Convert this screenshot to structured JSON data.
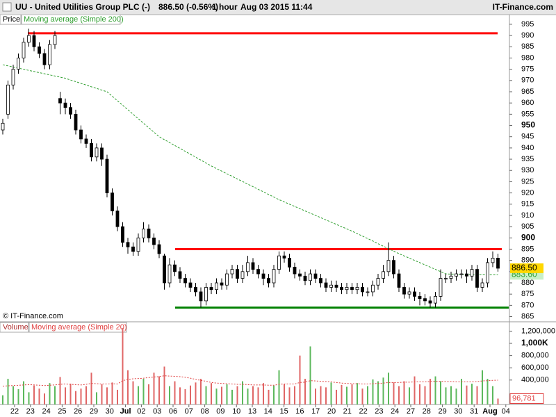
{
  "header": {
    "symbol": "UU - United Utilities Group PLC (-)",
    "quote": "886.50 (-0.56%)",
    "interval": "1 hour",
    "timestamp": "Aug 03 2015 11:44",
    "brand": "IT-Finance.com"
  },
  "chart_data": [
    {
      "type": "candlestick",
      "candle_name": "Price",
      "watermark": "© IT-Finance.com",
      "candles": {
        "open": [
          948,
          955,
          968,
          975,
          980,
          987,
          990,
          985,
          982,
          977,
          986,
          962,
          960,
          958,
          955,
          948,
          944,
          942,
          936,
          940,
          935,
          920,
          912,
          905,
          898,
          896,
          894,
          900,
          904,
          900,
          897,
          892,
          880,
          888,
          885,
          882,
          880,
          878,
          876,
          872,
          878,
          877,
          880,
          879,
          884,
          886,
          882,
          885,
          889,
          886,
          884,
          882,
          880,
          886,
          892,
          891,
          887,
          884,
          883,
          881,
          884,
          882,
          880,
          878,
          879,
          878,
          877,
          878,
          877,
          878,
          876,
          876,
          879,
          882,
          885,
          890,
          884,
          878,
          875,
          876,
          874,
          873,
          872,
          871,
          874,
          882,
          882,
          883,
          884,
          884,
          883,
          886,
          878,
          880,
          889,
          891
        ],
        "high": [
          953,
          970,
          977,
          982,
          989,
          993,
          992,
          987,
          984,
          988,
          992,
          965,
          962,
          960,
          957,
          950,
          946,
          944,
          942,
          942,
          937,
          922,
          914,
          907,
          900,
          898,
          902,
          907,
          906,
          902,
          899,
          893,
          891,
          890,
          887,
          884,
          882,
          880,
          878,
          880,
          880,
          882,
          882,
          886,
          888,
          888,
          888,
          892,
          891,
          888,
          886,
          884,
          888,
          894,
          894,
          893,
          889,
          886,
          885,
          886,
          886,
          884,
          882,
          881,
          881,
          880,
          880,
          880,
          880,
          880,
          878,
          881,
          884,
          888,
          898,
          892,
          886,
          880,
          878,
          878,
          876,
          875,
          874,
          876,
          886,
          884,
          885,
          886,
          886,
          886,
          888,
          888,
          882,
          891,
          894,
          893
        ],
        "low": [
          946,
          953,
          966,
          973,
          978,
          985,
          983,
          980,
          975,
          975,
          984,
          955,
          955,
          953,
          946,
          942,
          940,
          934,
          934,
          932,
          918,
          910,
          903,
          896,
          893,
          892,
          892,
          898,
          898,
          895,
          891,
          877,
          878,
          883,
          880,
          878,
          876,
          874,
          869,
          870,
          875,
          875,
          877,
          877,
          882,
          880,
          880,
          883,
          884,
          882,
          879,
          878,
          878,
          884,
          889,
          885,
          882,
          881,
          879,
          879,
          880,
          878,
          876,
          876,
          876,
          875,
          875,
          875,
          875,
          874,
          874,
          874,
          877,
          880,
          883,
          882,
          876,
          873,
          873,
          872,
          870,
          870,
          869,
          869,
          872,
          880,
          880,
          881,
          882,
          880,
          881,
          876,
          876,
          878,
          887,
          885
        ],
        "close": [
          951,
          968,
          975,
          980,
          987,
          990,
          985,
          982,
          977,
          986,
          990,
          960,
          958,
          955,
          948,
          944,
          942,
          936,
          940,
          935,
          920,
          912,
          905,
          898,
          896,
          894,
          900,
          904,
          900,
          897,
          893,
          880,
          888,
          885,
          882,
          880,
          878,
          876,
          872,
          878,
          877,
          880,
          879,
          884,
          886,
          882,
          885,
          889,
          886,
          884,
          882,
          880,
          886,
          892,
          891,
          887,
          884,
          883,
          881,
          884,
          882,
          880,
          878,
          879,
          878,
          877,
          878,
          877,
          878,
          876,
          876,
          879,
          882,
          885,
          890,
          884,
          878,
          875,
          876,
          874,
          873,
          872,
          871,
          874,
          882,
          882,
          883,
          884,
          884,
          883,
          886,
          878,
          880,
          889,
          891,
          886.5
        ]
      },
      "series": [
        {
          "name": "Moving average (Simple 200)",
          "color": "#2e9e2e",
          "values": [
            977,
            976.5,
            976,
            975.5,
            975,
            974.5,
            974,
            973.5,
            973,
            972.5,
            972,
            971.5,
            971,
            970.2,
            969.5,
            968.7,
            968,
            967.2,
            966.5,
            965.7,
            965,
            963,
            961,
            959,
            957,
            955,
            953,
            951,
            949,
            947,
            945,
            943.7,
            942.4,
            941.1,
            939.8,
            938.5,
            937.2,
            935.9,
            934.6,
            933.3,
            932,
            930.8,
            929.7,
            928.5,
            927.4,
            926.2,
            925.1,
            923.9,
            922.8,
            921.6,
            920.5,
            919.3,
            918.2,
            917,
            916,
            915,
            914,
            913,
            912,
            911,
            910,
            909,
            908,
            907,
            906,
            905,
            904,
            903,
            901.9,
            900.8,
            899.7,
            898.6,
            897.4,
            896.3,
            895.2,
            894.1,
            893,
            892,
            891,
            890,
            889,
            888,
            887,
            886,
            885,
            884,
            883.9,
            883.9,
            883.8,
            883.8,
            883.7,
            883.7,
            883.7,
            883.6,
            883.6,
            883.6
          ]
        }
      ],
      "horizontal_lines": [
        {
          "value": 991,
          "color": "#ff0000"
        },
        {
          "value": 895,
          "color": "#ff0000"
        },
        {
          "value": 869,
          "color": "#008000"
        }
      ],
      "last_price": {
        "value": 886.5,
        "label": "886.50",
        "color": "#ffd700"
      },
      "last_ma": {
        "value": 883.6,
        "label": "883.60",
        "color": "#c8f0c8"
      },
      "ylim": [
        863,
        999
      ],
      "yticks": [
        865,
        870,
        875,
        880,
        885,
        890,
        895,
        900,
        905,
        910,
        915,
        920,
        925,
        930,
        935,
        940,
        945,
        950,
        955,
        960,
        965,
        970,
        975,
        980,
        985,
        990,
        995
      ],
      "grid": false
    },
    {
      "type": "bar",
      "series": [
        {
          "name": "Volume",
          "color": "#5cb85c",
          "values": [
            150000,
            420000,
            300000,
            250000,
            380000,
            200000,
            310000,
            260000,
            180000,
            350000,
            300000,
            450000,
            280000,
            340000,
            220000,
            260000,
            300000,
            520000,
            200000,
            330000,
            280000,
            360000,
            240000,
            1250000,
            560000,
            380000,
            300000,
            420000,
            330000,
            520000,
            460000,
            620000,
            300000,
            380000,
            280000,
            250000,
            310000,
            360000,
            420000,
            300000,
            350000,
            260000,
            290000,
            330000,
            240000,
            300000,
            380000,
            260000,
            300000,
            280000,
            350000,
            240000,
            310000,
            560000,
            330000,
            280000,
            300000,
            800000,
            420000,
            950000,
            260000,
            300000,
            280000,
            360000,
            240000,
            320000,
            290000,
            330000,
            350000,
            260000,
            300000,
            410000,
            380000,
            440000,
            520000,
            360000,
            300000,
            380000,
            280000,
            460000,
            330000,
            300000,
            420000,
            460000,
            380000,
            280000,
            300000,
            260000,
            420000,
            310000,
            340000,
            300000,
            560000,
            420000,
            300000,
            96781
          ]
        },
        {
          "name": "Moving average (Simple 20)",
          "type": "line",
          "color": "#e04040",
          "values": [
            300000,
            305000,
            310000,
            315000,
            320000,
            325000,
            320000,
            315000,
            310000,
            315000,
            320000,
            330000,
            335000,
            330000,
            325000,
            320000,
            330000,
            345000,
            340000,
            335000,
            335000,
            340000,
            335000,
            390000,
            410000,
            420000,
            425000,
            430000,
            440000,
            450000,
            455000,
            470000,
            465000,
            460000,
            455000,
            445000,
            430000,
            410000,
            395000,
            380000,
            360000,
            350000,
            345000,
            340000,
            335000,
            330000,
            330000,
            325000,
            320000,
            320000,
            320000,
            315000,
            315000,
            330000,
            335000,
            335000,
            335000,
            360000,
            365000,
            390000,
            385000,
            380000,
            375000,
            370000,
            360000,
            350000,
            345000,
            340000,
            340000,
            335000,
            335000,
            340000,
            345000,
            350000,
            360000,
            360000,
            360000,
            365000,
            365000,
            370000,
            370000,
            370000,
            375000,
            380000,
            380000,
            375000,
            375000,
            370000,
            370000,
            370000,
            370000,
            375000,
            385000,
            390000,
            395000,
            398000
          ]
        }
      ],
      "last_volume": {
        "value": 96781,
        "label": "96,781",
        "color": "#e04040"
      },
      "ylim": [
        0,
        1330000
      ],
      "yticks": [
        {
          "value": 400000,
          "label": "400,000"
        },
        {
          "value": 600000,
          "label": "600,000"
        },
        {
          "value": 800000,
          "label": "800,000"
        },
        {
          "value": 1000000,
          "label": "1,000K"
        },
        {
          "value": 1200000,
          "label": "1,200,000"
        }
      ],
      "x_labels": [
        "22",
        "23",
        "24",
        "25",
        "26",
        "29",
        "30",
        "Jul",
        "02",
        "03",
        "06",
        "07",
        "08",
        "09",
        "10",
        "13",
        "14",
        "15",
        "16",
        "17",
        "20",
        "21",
        "22",
        "23",
        "24",
        "27",
        "28",
        "29",
        "30",
        "31",
        "Aug",
        "04"
      ],
      "grid": false
    }
  ]
}
